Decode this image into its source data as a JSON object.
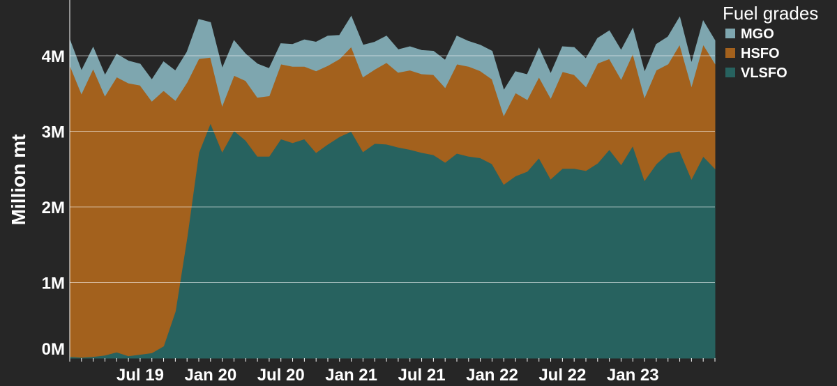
{
  "chart_data": {
    "type": "area",
    "stacked": true,
    "ylabel": "Million mt",
    "xlabel": "",
    "ylim": [
      0,
      4.55
    ],
    "y_ticks": [
      {
        "value": 0,
        "label": "0M"
      },
      {
        "value": 1,
        "label": "1M"
      },
      {
        "value": 2,
        "label": "2M"
      },
      {
        "value": 3,
        "label": "3M"
      },
      {
        "value": 4,
        "label": "4M"
      }
    ],
    "x_ticks": [
      {
        "index": 6,
        "label": "Jul 19"
      },
      {
        "index": 12,
        "label": "Jan 20"
      },
      {
        "index": 18,
        "label": "Jul 20"
      },
      {
        "index": 24,
        "label": "Jan 21"
      },
      {
        "index": 30,
        "label": "Jul 21"
      },
      {
        "index": 36,
        "label": "Jan 22"
      },
      {
        "index": 42,
        "label": "Jul 22"
      },
      {
        "index": 48,
        "label": "Jan 23"
      }
    ],
    "grid": {
      "horizontal": true,
      "vertical": false
    },
    "legend": {
      "title": "Fuel grades",
      "position": "top-right"
    },
    "colors": {
      "background": "#262626",
      "VLSFO": "#27625f",
      "HSFO": "#a3611d",
      "MGO": "#7ea6af",
      "text": "#ffffff"
    },
    "series": [
      {
        "name": "VLSFO",
        "color": "#27625f",
        "values": [
          0.02,
          0.01,
          0.02,
          0.04,
          0.08,
          0.03,
          0.05,
          0.07,
          0.16,
          0.62,
          1.6,
          2.72,
          3.11,
          2.73,
          3.01,
          2.88,
          2.67,
          2.67,
          2.9,
          2.85,
          2.9,
          2.72,
          2.83,
          2.93,
          3.0,
          2.73,
          2.84,
          2.83,
          2.79,
          2.76,
          2.72,
          2.69,
          2.59,
          2.71,
          2.67,
          2.65,
          2.57,
          2.3,
          2.41,
          2.47,
          2.65,
          2.37,
          2.51,
          2.51,
          2.48,
          2.58,
          2.76,
          2.56,
          2.81,
          2.35,
          2.57,
          2.71,
          2.74,
          2.37,
          2.67,
          2.51
        ]
      },
      {
        "name": "HSFO",
        "color": "#a3611d",
        "values": [
          3.86,
          3.49,
          3.81,
          3.43,
          3.64,
          3.61,
          3.56,
          3.33,
          3.38,
          2.79,
          2.05,
          1.24,
          0.87,
          0.61,
          0.73,
          0.79,
          0.78,
          0.8,
          0.99,
          1.01,
          0.96,
          1.08,
          1.04,
          1.03,
          1.12,
          0.99,
          0.98,
          1.08,
          0.99,
          1.05,
          1.04,
          1.06,
          0.99,
          1.18,
          1.19,
          1.15,
          1.12,
          0.91,
          1.1,
          0.95,
          1.07,
          1.07,
          1.28,
          1.24,
          1.11,
          1.32,
          1.2,
          1.13,
          1.22,
          1.1,
          1.24,
          1.18,
          1.41,
          1.23,
          1.48,
          1.39
        ]
      },
      {
        "name": "MGO",
        "color": "#7ea6af",
        "values": [
          0.33,
          0.3,
          0.28,
          0.27,
          0.3,
          0.29,
          0.28,
          0.28,
          0.38,
          0.39,
          0.4,
          0.52,
          0.46,
          0.49,
          0.46,
          0.35,
          0.44,
          0.36,
          0.27,
          0.29,
          0.35,
          0.38,
          0.39,
          0.31,
          0.4,
          0.42,
          0.36,
          0.35,
          0.3,
          0.31,
          0.31,
          0.31,
          0.36,
          0.37,
          0.33,
          0.34,
          0.37,
          0.33,
          0.28,
          0.33,
          0.38,
          0.32,
          0.33,
          0.36,
          0.37,
          0.33,
          0.37,
          0.38,
          0.33,
          0.33,
          0.34,
          0.36,
          0.36,
          0.3,
          0.31,
          0.3
        ]
      }
    ]
  }
}
